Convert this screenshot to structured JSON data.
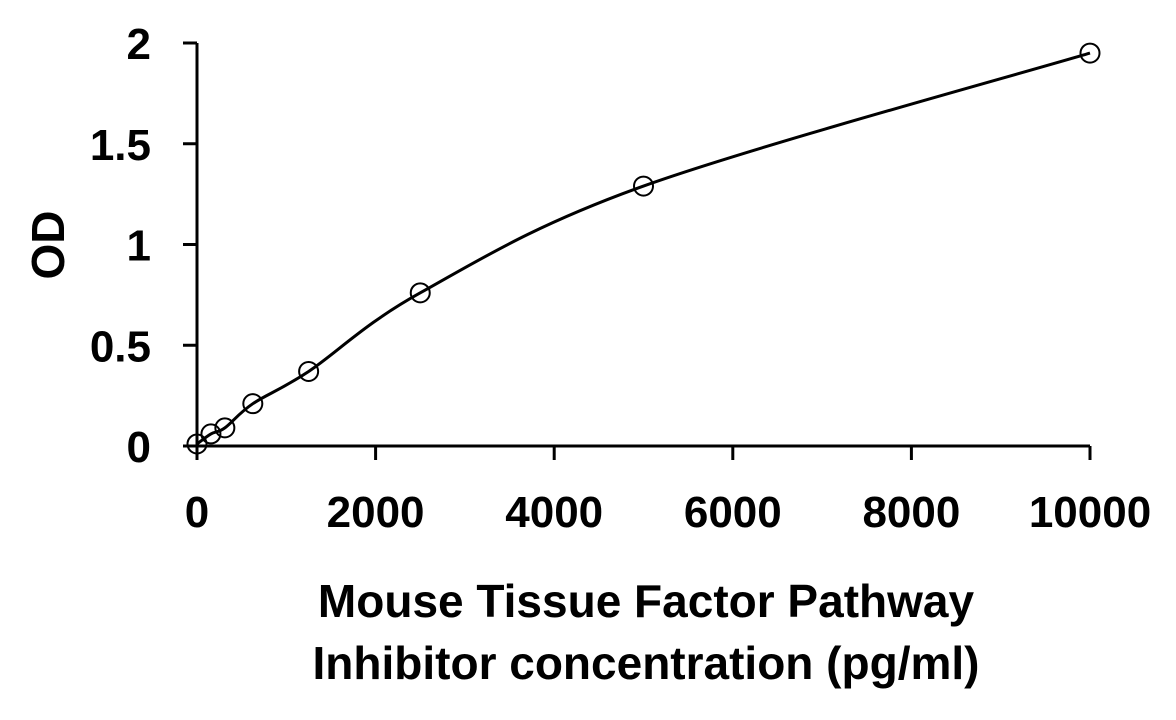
{
  "chart_data": {
    "type": "scatter",
    "title": "",
    "xlabel_lines": [
      "Mouse Tissue Factor Pathway",
      "Inhibitor concentration (pg/ml)"
    ],
    "ylabel": "OD",
    "xlim": [
      0,
      10000
    ],
    "ylim": [
      0,
      2
    ],
    "x_ticks": [
      0,
      2000,
      4000,
      6000,
      8000,
      10000
    ],
    "y_ticks": [
      0,
      0.5,
      1,
      1.5,
      2
    ],
    "x_tick_labels": [
      "0",
      "2000",
      "4000",
      "6000",
      "8000",
      "10000"
    ],
    "y_tick_labels": [
      "0",
      "0.5",
      "1",
      "1.5",
      "2"
    ],
    "grid": false,
    "legend": "none",
    "series": [
      {
        "marker": "open-circle",
        "x": [
          0,
          156,
          312,
          625,
          1250,
          2500,
          5000,
          10000
        ],
        "y": [
          0.01,
          0.06,
          0.09,
          0.21,
          0.37,
          0.76,
          1.29,
          1.95
        ]
      }
    ],
    "trendline": {
      "type": "curve",
      "x_range": [
        0,
        10000
      ],
      "y_range": [
        0.01,
        1.95
      ]
    }
  }
}
